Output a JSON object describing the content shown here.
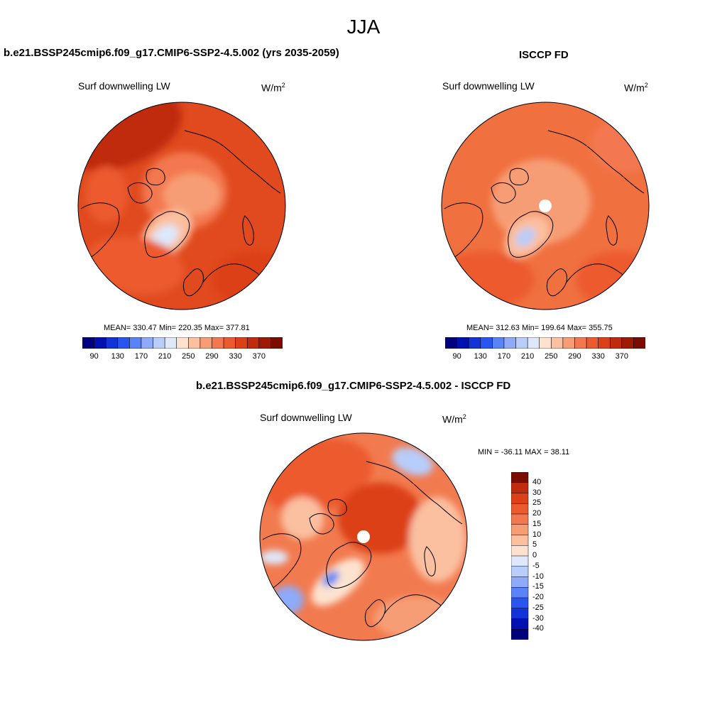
{
  "figure": {
    "season": "JJA"
  },
  "panels": [
    {
      "id": "model",
      "title": "b.e21.BSSP245cmip6.f09_g17.CMIP6-SSP2-4.5.002 (yrs 2035-2059)",
      "variable": "Surf downwelling LW",
      "units": "W/m",
      "units_sup": "2",
      "stats": "MEAN= 330.47  Min= 220.35  Max= 377.81"
    },
    {
      "id": "obs",
      "title": "ISCCP FD",
      "variable": "Surf downwelling LW",
      "units": "W/m",
      "units_sup": "2",
      "stats": "MEAN= 312.63  Min= 199.64  Max= 355.75"
    },
    {
      "id": "diff",
      "title": "b.e21.BSSP245cmip6.f09_g17.CMIP6-SSP2-4.5.002 - ISCCP FD",
      "variable": "Surf downwelling LW",
      "units": "W/m",
      "units_sup": "2",
      "stats": "MIN = -36.11 MAX =  38.11"
    }
  ],
  "abs_colorbar": {
    "colors": [
      "#00007f",
      "#0011b2",
      "#1133d8",
      "#2a55ee",
      "#5a83f7",
      "#8eaaf8",
      "#b8cdfa",
      "#dde8fb",
      "#fde3cf",
      "#fbc0a0",
      "#f79d75",
      "#f3784f",
      "#ec5a2f",
      "#dc4019",
      "#c02a0d",
      "#9e1a05",
      "#7a0d00"
    ],
    "labels": [
      "90",
      "130",
      "170",
      "210",
      "250",
      "290",
      "330",
      "370"
    ]
  },
  "diff_colorbar": {
    "colors": [
      "#00007f",
      "#0011b2",
      "#1133d8",
      "#2a55ee",
      "#5a83f7",
      "#8eaaf8",
      "#b8cdfa",
      "#dde8fb",
      "#fde3cf",
      "#fbc0a0",
      "#f79d75",
      "#f3784f",
      "#ec5a2f",
      "#dc4019",
      "#c02a0d",
      "#7a0d00"
    ],
    "labels": [
      "40",
      "30",
      "25",
      "20",
      "15",
      "10",
      "5",
      "0",
      "-5",
      "-10",
      "-15",
      "-20",
      "-25",
      "-30",
      "-40"
    ]
  },
  "colors": {
    "model_base": "#e04a1e",
    "obs_base": "#f0703f",
    "diff_base": "#f27a4f",
    "coast": "#000000"
  }
}
